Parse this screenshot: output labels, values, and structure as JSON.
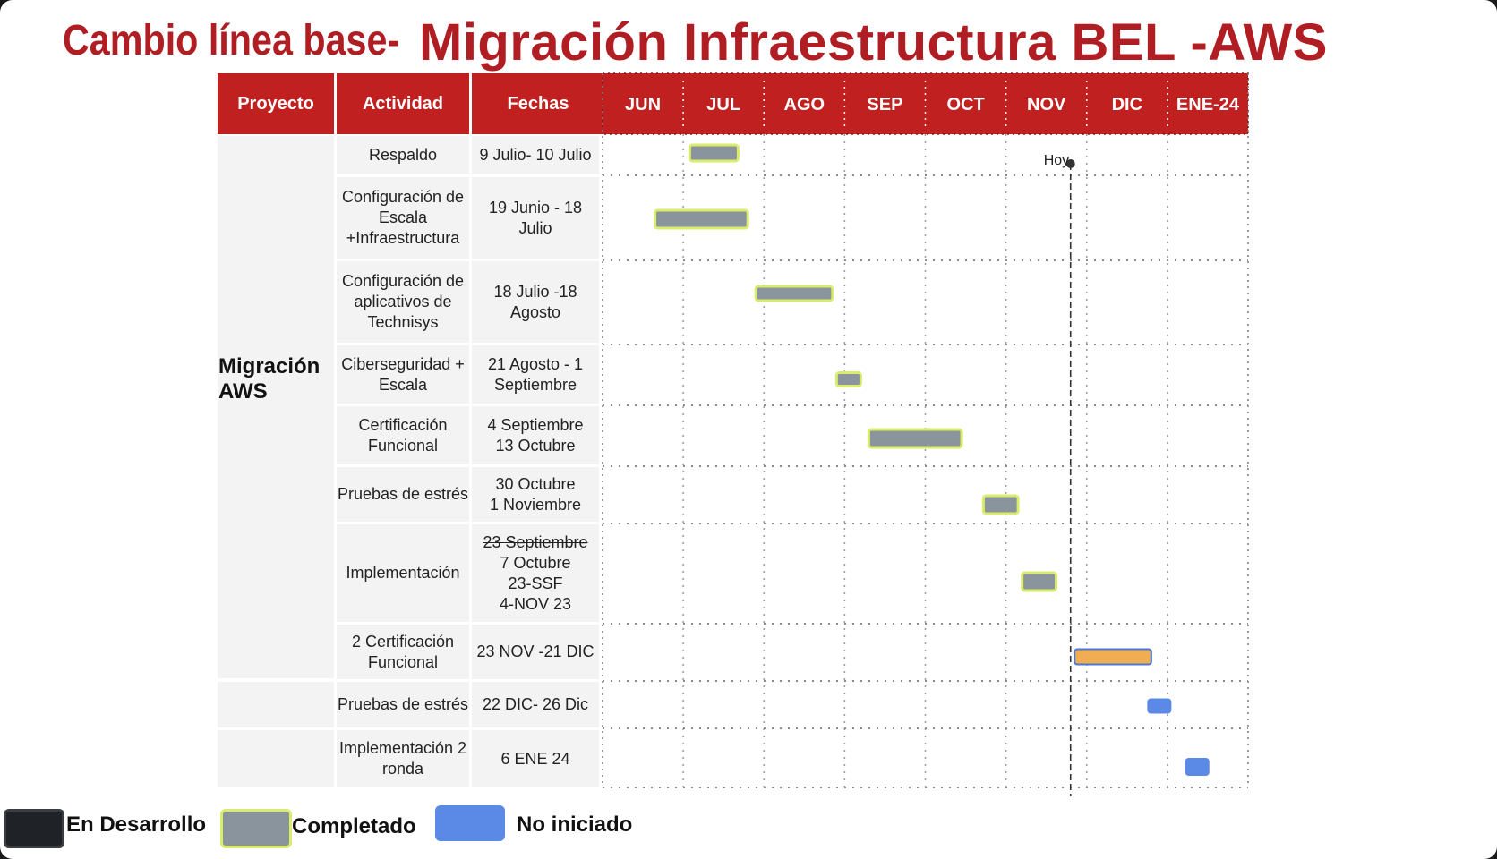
{
  "title": {
    "prefix": "Cambio línea base-",
    "main": "Migración Infraestructura BEL -AWS"
  },
  "table": {
    "headers": [
      "Proyecto",
      "Actividad",
      "Fechas"
    ],
    "project": "Migración AWS",
    "rows": [
      {
        "actividad": "Respaldo",
        "fechas": "9 Julio- 10 Julio"
      },
      {
        "actividad": "Configuración de\nEscala\n+Infraestructura",
        "fechas": "19 Junio - 18 Julio"
      },
      {
        "actividad": "Configuración de\naplicativos de\nTechnisys",
        "fechas": "18 Julio -18\nAgosto"
      },
      {
        "actividad": "Ciberseguridad +\nEscala",
        "fechas": "21  Agosto - 1\nSeptiembre"
      },
      {
        "actividad": "Certificación\nFuncional",
        "fechas": "4 Septiembre\n13 Octubre"
      },
      {
        "actividad": "Pruebas de estrés",
        "fechas": "30 Octubre\n1 Noviembre"
      },
      {
        "actividad": "Implementación",
        "fechas_struck": "23 Septiembre",
        "fechas": "7 Octubre\n23-SSF\n4-NOV 23"
      },
      {
        "actividad": "2 Certificación\nFuncional",
        "fechas": "23 NOV  -21 DIC"
      },
      {
        "actividad": "Pruebas de estrés",
        "fechas": "22 DIC- 26 Dic"
      },
      {
        "actividad": "Implementación 2\nronda",
        "fechas": "6 ENE 24"
      }
    ]
  },
  "chart_data": {
    "type": "gantt",
    "months": [
      "JUN",
      "JUL",
      "AGO",
      "SEP",
      "OCT",
      "NOV",
      "DIC",
      "ENE-24"
    ],
    "x_unit": "months since 1 Jun 2023",
    "today_label": "Hoy",
    "today": 5.8,
    "tasks": [
      {
        "name": "Respaldo",
        "start": 1.08,
        "end": 1.68,
        "status": "completado"
      },
      {
        "name": "Configuración de Escala +Infraestructura",
        "start": 0.65,
        "end": 1.8,
        "status": "completado"
      },
      {
        "name": "Configuración de aplicativos de Technisys",
        "start": 1.9,
        "end": 2.85,
        "status": "completado"
      },
      {
        "name": "Ciberseguridad + Escala",
        "start": 2.9,
        "end": 3.2,
        "status": "completado"
      },
      {
        "name": "Certificación Funcional",
        "start": 3.3,
        "end": 4.45,
        "status": "completado"
      },
      {
        "name": "Pruebas de estrés",
        "start": 4.72,
        "end": 5.15,
        "status": "completado"
      },
      {
        "name": "Implementación",
        "start": 5.2,
        "end": 5.62,
        "status": "completado"
      },
      {
        "name": "2 Certificación Funcional",
        "start": 5.85,
        "end": 6.8,
        "status": "en_curso"
      },
      {
        "name": "Pruebas de estrés",
        "start": 6.75,
        "end": 7.05,
        "status": "no_iniciado"
      },
      {
        "name": "Implementación 2 ronda",
        "start": 7.22,
        "end": 7.52,
        "status": "no_iniciado"
      }
    ],
    "colors": {
      "completado": "#8a949c",
      "en_curso": "#f0ad52",
      "no_iniciado": "#5b8ae6",
      "en_desarrollo": "#1f2226",
      "bar_outline": "#d9ec6c",
      "header": "#c0201f"
    }
  },
  "legend": [
    {
      "label": "En Desarrollo",
      "color": "#1f2226"
    },
    {
      "label": "Completado",
      "color": "#8a949c"
    },
    {
      "label": "No iniciado",
      "color": "#5b8ae6"
    }
  ]
}
